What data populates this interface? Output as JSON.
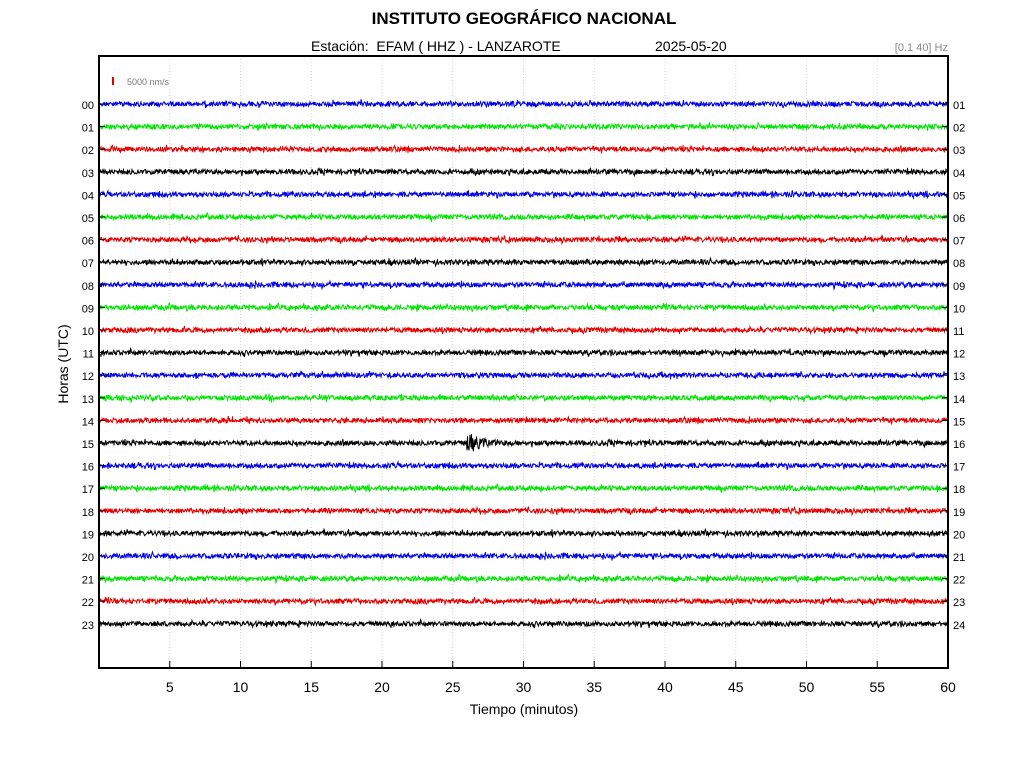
{
  "header": {
    "title": "INSTITUTO GEOGRÁFICO NACIONAL",
    "station_label": "Estación:  EFAM ( HHZ ) - LANZAROTE",
    "date": "2025-05-20",
    "filter": "[0.1 40] Hz"
  },
  "chart_data": {
    "type": "line",
    "title": "INSTITUTO GEOGRÁFICO NACIONAL",
    "xlabel": "Tiempo (minutos)",
    "ylabel": "Horas (UTC)",
    "xlim": [
      0,
      60
    ],
    "x_ticks": [
      "5",
      "10",
      "15",
      "20",
      "25",
      "30",
      "35",
      "40",
      "45",
      "50",
      "55",
      "60"
    ],
    "y_ticks_left": [
      "00",
      "01",
      "02",
      "03",
      "04",
      "05",
      "06",
      "07",
      "08",
      "09",
      "10",
      "11",
      "12",
      "13",
      "14",
      "15",
      "16",
      "17",
      "18",
      "19",
      "20",
      "21",
      "22",
      "23"
    ],
    "y_ticks_right": [
      "01",
      "02",
      "03",
      "04",
      "05",
      "06",
      "07",
      "08",
      "09",
      "10",
      "11",
      "12",
      "13",
      "14",
      "15",
      "16",
      "17",
      "18",
      "19",
      "20",
      "21",
      "22",
      "23",
      "24"
    ],
    "scale_label": "5000 nm/s",
    "grid": true,
    "colors": [
      "#0000e6",
      "#00e600",
      "#e60000",
      "#000000"
    ],
    "scale_color": "#e60000",
    "event": {
      "hour": "15",
      "start_minute": 26,
      "end_minute": 30
    }
  }
}
